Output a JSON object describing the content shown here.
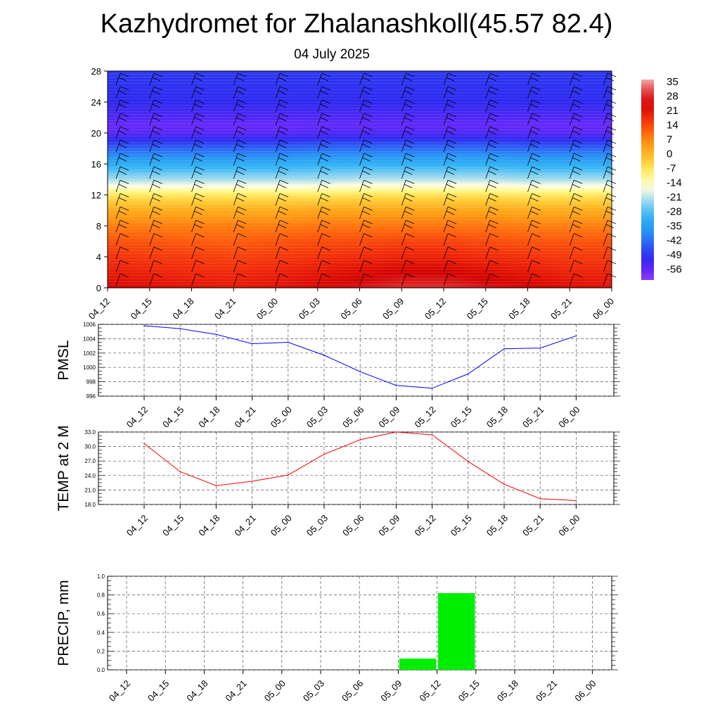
{
  "title": "Kazhydromet for Zhalanashkoll(45.57 82.4)",
  "subtitle": "04 July 2025",
  "time_labels": [
    "04_12",
    "04_15",
    "04_18",
    "04_21",
    "05_00",
    "05_03",
    "05_06",
    "05_09",
    "05_12",
    "05_15",
    "05_18",
    "05_21",
    "06_00"
  ],
  "colorbar": {
    "labels": [
      "35",
      "28",
      "21",
      "14",
      "7",
      "0",
      "-7",
      "-14",
      "-21",
      "-28",
      "-35",
      "-42",
      "-49",
      "-56"
    ]
  },
  "chart_data": [
    {
      "type": "heatmap",
      "name": "cross-section",
      "x": [
        "04_12",
        "04_15",
        "04_18",
        "04_21",
        "05_00",
        "05_03",
        "05_06",
        "05_09",
        "05_12",
        "05_15",
        "05_18",
        "05_21",
        "06_00"
      ],
      "yticks": [
        "0",
        "4",
        "8",
        "12",
        "16",
        "20",
        "24",
        "28"
      ],
      "ylim": [
        0,
        28
      ],
      "zlim": [
        -56,
        35
      ],
      "rows": [
        {
          "level": 0,
          "values": [
            27,
            26,
            25,
            24,
            25,
            27,
            30,
            32,
            32,
            30,
            28,
            26,
            25
          ]
        },
        {
          "level": 2,
          "values": [
            23,
            22,
            21,
            21,
            22,
            24,
            26,
            28,
            28,
            26,
            24,
            22,
            22
          ]
        },
        {
          "level": 4,
          "values": [
            20,
            19,
            19,
            18,
            19,
            20,
            21,
            22,
            22,
            21,
            20,
            19,
            19
          ]
        },
        {
          "level": 6,
          "values": [
            16,
            16,
            15,
            15,
            16,
            17,
            17,
            18,
            18,
            17,
            16,
            16,
            16
          ]
        },
        {
          "level": 8,
          "values": [
            11,
            11,
            11,
            11,
            11,
            12,
            12,
            12,
            12,
            12,
            11,
            11,
            11
          ]
        },
        {
          "level": 10,
          "values": [
            5,
            5,
            5,
            5,
            5,
            6,
            6,
            6,
            6,
            6,
            5,
            5,
            5
          ]
        },
        {
          "level": 12,
          "values": [
            -5,
            -5,
            -5,
            -5,
            -5,
            -5,
            -4,
            -4,
            -4,
            -4,
            -5,
            -5,
            -5
          ]
        },
        {
          "level": 13,
          "values": [
            -13,
            -13,
            -13,
            -13,
            -13,
            -13,
            -12,
            -12,
            -12,
            -12,
            -13,
            -13,
            -13
          ]
        },
        {
          "level": 14,
          "values": [
            -20,
            -20,
            -20,
            -20,
            -20,
            -20,
            -19,
            -19,
            -19,
            -19,
            -20,
            -20,
            -20
          ]
        },
        {
          "level": 16,
          "values": [
            -30,
            -30,
            -30,
            -30,
            -30,
            -29,
            -29,
            -29,
            -29,
            -29,
            -30,
            -30,
            -30
          ]
        },
        {
          "level": 18,
          "values": [
            -42,
            -42,
            -42,
            -42,
            -42,
            -41,
            -41,
            -41,
            -41,
            -41,
            -42,
            -42,
            -42
          ]
        },
        {
          "level": 20,
          "values": [
            -54,
            -54,
            -54,
            -54,
            -54,
            -53,
            -53,
            -53,
            -53,
            -53,
            -54,
            -54,
            -54
          ]
        },
        {
          "level": 21,
          "values": [
            -56,
            -56,
            -56,
            -56,
            -56,
            -55,
            -55,
            -55,
            -55,
            -55,
            -56,
            -56,
            -56
          ]
        },
        {
          "level": 22,
          "values": [
            -53,
            -53,
            -53,
            -53,
            -53,
            -53,
            -53,
            -53,
            -53,
            -53,
            -53,
            -53,
            -53
          ]
        },
        {
          "level": 24,
          "values": [
            -49,
            -49,
            -49,
            -49,
            -49,
            -49,
            -49,
            -49,
            -49,
            -49,
            -49,
            -49,
            -49
          ]
        },
        {
          "level": 28,
          "values": [
            -47,
            -47,
            -47,
            -47,
            -47,
            -47,
            -47,
            -47,
            -47,
            -47,
            -47,
            -47,
            -47
          ]
        }
      ]
    },
    {
      "type": "line",
      "name": "pmsl",
      "ylabel": "PMSL",
      "ylim": [
        996,
        1006
      ],
      "yticks": [
        "1006",
        "1004",
        "1002",
        "1000",
        "998",
        "996"
      ],
      "color": "#0000ff",
      "x": [
        "04_12",
        "04_15",
        "04_18",
        "04_21",
        "05_00",
        "05_03",
        "05_06",
        "05_09",
        "05_12",
        "05_15",
        "05_18",
        "05_21",
        "06_00"
      ],
      "values": [
        1005.8,
        1005.4,
        1004.6,
        1003.3,
        1003.5,
        1001.7,
        999.4,
        997.5,
        997.1,
        999.1,
        1002.6,
        1002.7,
        1004.4
      ]
    },
    {
      "type": "line",
      "name": "temp",
      "ylabel": "TEMP at 2 M",
      "ylim": [
        18,
        33
      ],
      "yticks": [
        "33.0",
        "30.0",
        "27.0",
        "24.0",
        "21.0",
        "18.0"
      ],
      "color": "#ff0000",
      "x": [
        "04_12",
        "04_15",
        "04_18",
        "04_21",
        "05_00",
        "05_03",
        "05_06",
        "05_09",
        "05_12",
        "05_15",
        "05_18",
        "05_21",
        "06_00"
      ],
      "values": [
        30.6,
        24.8,
        21.9,
        22.8,
        24.1,
        28.4,
        31.4,
        33.0,
        32.4,
        26.9,
        22.2,
        19.2,
        18.8
      ]
    },
    {
      "type": "bar",
      "name": "precip",
      "ylabel": "PRECIP, mm",
      "ylim": [
        0,
        1
      ],
      "yticks": [
        "1.0",
        "0.8",
        "0.6",
        "0.4",
        "0.2",
        "0.0"
      ],
      "color": "#00ee00",
      "x": [
        "04_12",
        "04_15",
        "04_18",
        "04_21",
        "05_00",
        "05_03",
        "05_06",
        "05_09",
        "05_12",
        "05_15",
        "05_18",
        "05_21",
        "06_00"
      ],
      "values": [
        0,
        0,
        0,
        0,
        0,
        0,
        0,
        0,
        0.12,
        0.82,
        0,
        0,
        0
      ]
    }
  ]
}
